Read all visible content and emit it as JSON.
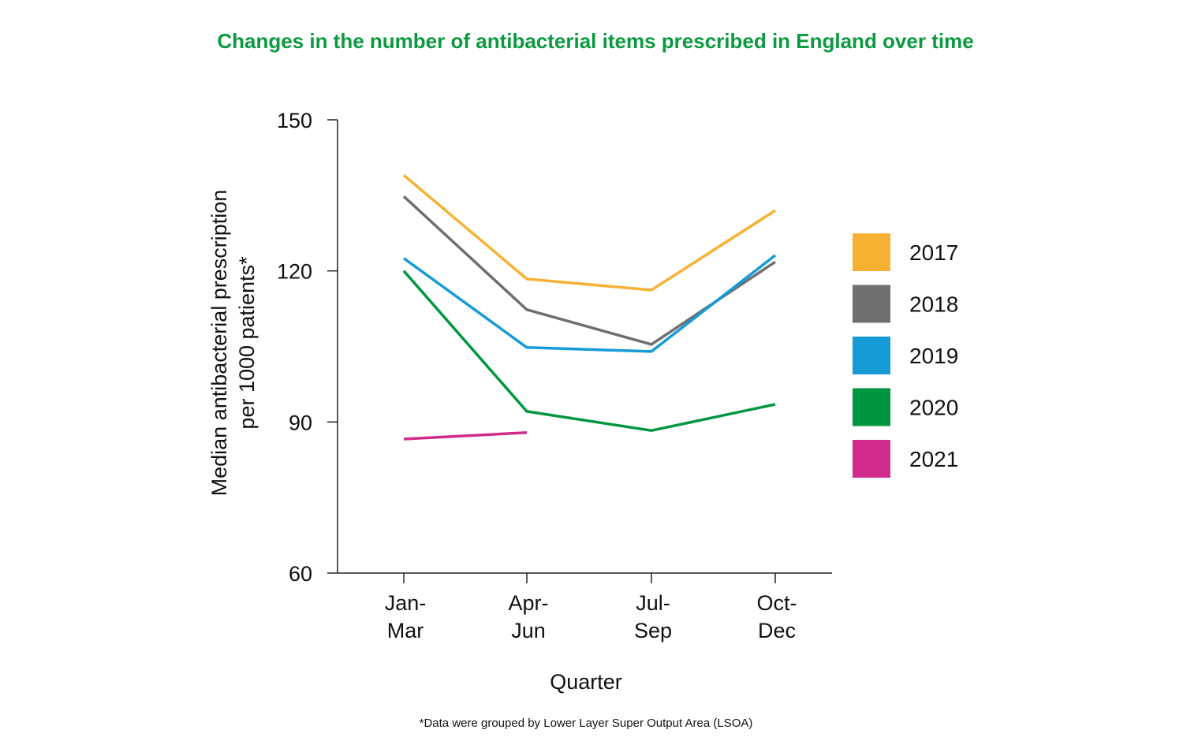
{
  "chart_data": {
    "type": "line",
    "title": "Changes in the number of antibacterial items prescribed in England over time",
    "xlabel": "Quarter",
    "ylabel_lines": [
      "Median antibacterial prescription",
      "per 1000 patients*"
    ],
    "footnote": "*Data were grouped by Lower Layer Super Output Area (LSOA)",
    "categories": [
      [
        "Jan-",
        "Mar"
      ],
      [
        "Apr-",
        "Jun"
      ],
      [
        "Jul-",
        "Sep"
      ],
      [
        "Oct-",
        "Dec"
      ]
    ],
    "ylim": [
      60,
      150
    ],
    "yticks": [
      60,
      90,
      120,
      150
    ],
    "grid": false,
    "legend_placement": "right",
    "title_color": "#0a9a3f",
    "series": [
      {
        "name": "2017",
        "color": "#f7b133",
        "values": [
          139.0,
          118.4,
          116.2,
          132.0
        ]
      },
      {
        "name": "2018",
        "color": "#6f6f6f",
        "values": [
          134.8,
          112.3,
          105.4,
          121.8
        ]
      },
      {
        "name": "2019",
        "color": "#169bd7",
        "values": [
          122.5,
          104.8,
          104.0,
          123.1
        ]
      },
      {
        "name": "2020",
        "color": "#009640",
        "values": [
          120.0,
          92.1,
          88.3,
          93.5
        ]
      },
      {
        "name": "2021",
        "color": "#d02b8b",
        "values": [
          86.6,
          87.9,
          null,
          null
        ]
      }
    ]
  }
}
